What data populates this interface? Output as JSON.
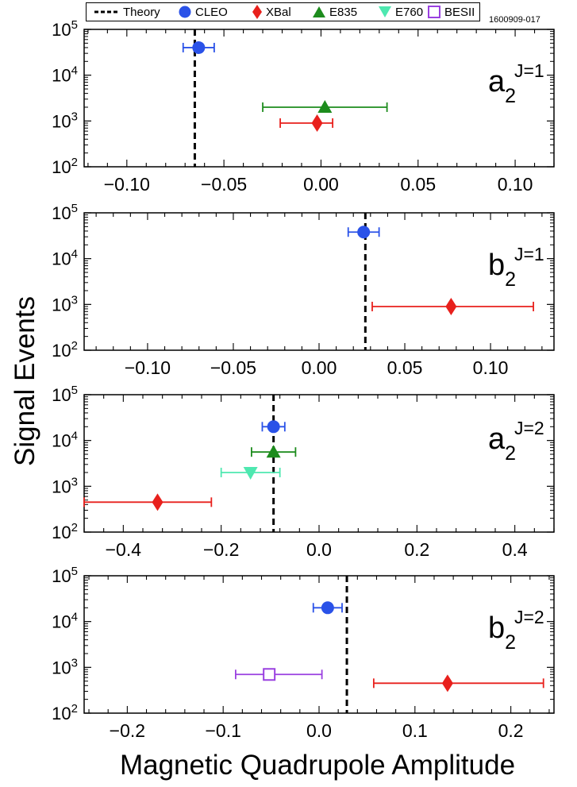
{
  "figure_id": "1600909-017",
  "y_title": "Signal Events",
  "x_title": "Magnetic Quadrupole Amplitude",
  "legend": [
    {
      "label": "Theory",
      "marker": "dashed-line",
      "color": "#000000"
    },
    {
      "label": "CLEO",
      "marker": "circle",
      "color": "#2a52e8"
    },
    {
      "label": "XBal",
      "marker": "diamond",
      "color": "#e8201c"
    },
    {
      "label": "E835",
      "marker": "triangle-up",
      "color": "#1d8c1d"
    },
    {
      "label": "E760",
      "marker": "triangle-down",
      "color": "#4ee8b0"
    },
    {
      "label": "BESII",
      "marker": "open-square",
      "color": "#9a40e0"
    }
  ],
  "chart_data": [
    {
      "type": "scatter",
      "panel_label": {
        "base": "a",
        "sub": "2",
        "sup": "J=1"
      },
      "xlim": [
        -0.122,
        0.12
      ],
      "xticks": [
        -0.1,
        -0.05,
        0.0,
        0.05,
        0.1
      ],
      "xtick_labels": [
        "−0.10",
        "−0.05",
        "0.00",
        "0.05",
        "0.10"
      ],
      "yscale": "log",
      "ylim": [
        100,
        100000
      ],
      "ytick_labels": [
        "10^2",
        "10^3",
        "10^4",
        "10^5"
      ],
      "theory": -0.065,
      "points": [
        {
          "experiment": "CLEO",
          "x": -0.063,
          "xerr_low": 0.008,
          "xerr_high": 0.008,
          "y": 40000
        },
        {
          "experiment": "E835",
          "x": 0.002,
          "xerr_low": 0.032,
          "xerr_high": 0.032,
          "y": 2000
        },
        {
          "experiment": "XBal",
          "x": -0.002,
          "xerr_low": 0.019,
          "xerr_high": 0.008,
          "y": 900
        }
      ]
    },
    {
      "type": "scatter",
      "panel_label": {
        "base": "b",
        "sub": "2",
        "sup": "J=1"
      },
      "xlim": [
        -0.137,
        0.137
      ],
      "xticks": [
        -0.1,
        -0.05,
        0.0,
        0.05,
        0.1
      ],
      "xtick_labels": [
        "−0.10",
        "−0.05",
        "0.00",
        "0.05",
        "0.10"
      ],
      "yscale": "log",
      "ylim": [
        100,
        100000
      ],
      "ytick_labels": [
        "10^2",
        "10^3",
        "10^4",
        "10^5"
      ],
      "theory": 0.027,
      "points": [
        {
          "experiment": "CLEO",
          "x": 0.026,
          "xerr_low": 0.009,
          "xerr_high": 0.009,
          "y": 38000
        },
        {
          "experiment": "XBal",
          "x": 0.077,
          "xerr_low": 0.046,
          "xerr_high": 0.048,
          "y": 900
        }
      ]
    },
    {
      "type": "scatter",
      "panel_label": {
        "base": "a",
        "sub": "2",
        "sup": "J=2"
      },
      "xlim": [
        -0.48,
        0.48
      ],
      "xticks": [
        -0.4,
        -0.2,
        0.0,
        0.2,
        0.4
      ],
      "xtick_labels": [
        "−0.4",
        "−0.2",
        "0.0",
        "0.2",
        "0.4"
      ],
      "yscale": "log",
      "ylim": [
        100,
        100000
      ],
      "ytick_labels": [
        "10^2",
        "10^3",
        "10^4",
        "10^5"
      ],
      "theory": -0.093,
      "points": [
        {
          "experiment": "CLEO",
          "x": -0.093,
          "xerr_low": 0.023,
          "xerr_high": 0.023,
          "y": 20000
        },
        {
          "experiment": "E835",
          "x": -0.093,
          "xerr_low": 0.045,
          "xerr_high": 0.045,
          "y": 5600
        },
        {
          "experiment": "E760",
          "x": -0.14,
          "xerr_low": 0.06,
          "xerr_high": 0.06,
          "y": 2000
        },
        {
          "experiment": "XBal",
          "x": -0.33,
          "xerr_low": 0.15,
          "xerr_high": 0.11,
          "y": 450
        }
      ]
    },
    {
      "type": "scatter",
      "panel_label": {
        "base": "b",
        "sub": "2",
        "sup": "J=2"
      },
      "xlim": [
        -0.245,
        0.245
      ],
      "xticks": [
        -0.2,
        -0.1,
        0.0,
        0.1,
        0.2
      ],
      "xtick_labels": [
        "−0.2",
        "−0.1",
        "0.0",
        "0.1",
        "0.2"
      ],
      "yscale": "log",
      "ylim": [
        100,
        100000
      ],
      "ytick_labels": [
        "10^2",
        "10^3",
        "10^4",
        "10^5"
      ],
      "theory": 0.029,
      "points": [
        {
          "experiment": "CLEO",
          "x": 0.009,
          "xerr_low": 0.015,
          "xerr_high": 0.015,
          "y": 20000
        },
        {
          "experiment": "BESII",
          "x": -0.052,
          "xerr_low": 0.035,
          "xerr_high": 0.055,
          "y": 700
        },
        {
          "experiment": "XBal",
          "x": 0.134,
          "xerr_low": 0.077,
          "xerr_high": 0.1,
          "y": 450
        }
      ]
    }
  ]
}
